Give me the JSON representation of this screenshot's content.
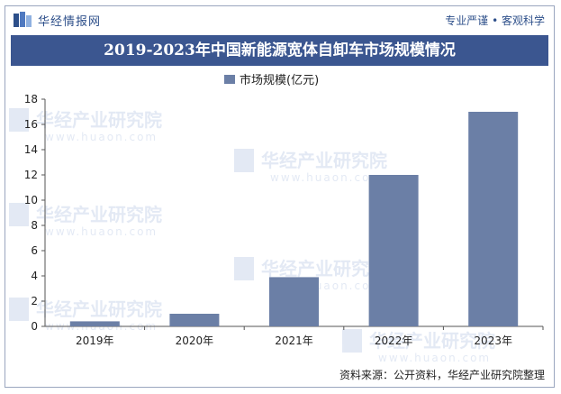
{
  "header": {
    "brand": "华经情报网",
    "slogan": "专业严谨 • 客观科学"
  },
  "watermark": {
    "cn": "华经产业研究院",
    "url": "www.huaon.com"
  },
  "source": "资料来源：公开资料，华经产业研究院整理",
  "colors": {
    "bar": "#6b7fa6",
    "title_band": "#3b5690",
    "axis": "#555555"
  },
  "chart_data": {
    "type": "bar",
    "title": "2019-2023年中国新能源宽体自卸车市场规模情况",
    "categories": [
      "2019年",
      "2020年",
      "2021年",
      "2022年",
      "2023年"
    ],
    "series": [
      {
        "name": "市场规模(亿元)",
        "values": [
          0.4,
          1.0,
          3.9,
          12.0,
          17.0
        ]
      }
    ],
    "ylim": [
      0,
      18
    ],
    "yticks": [
      0,
      2,
      4,
      6,
      8,
      10,
      12,
      14,
      16,
      18
    ],
    "legend": "top-center",
    "grid": false
  }
}
